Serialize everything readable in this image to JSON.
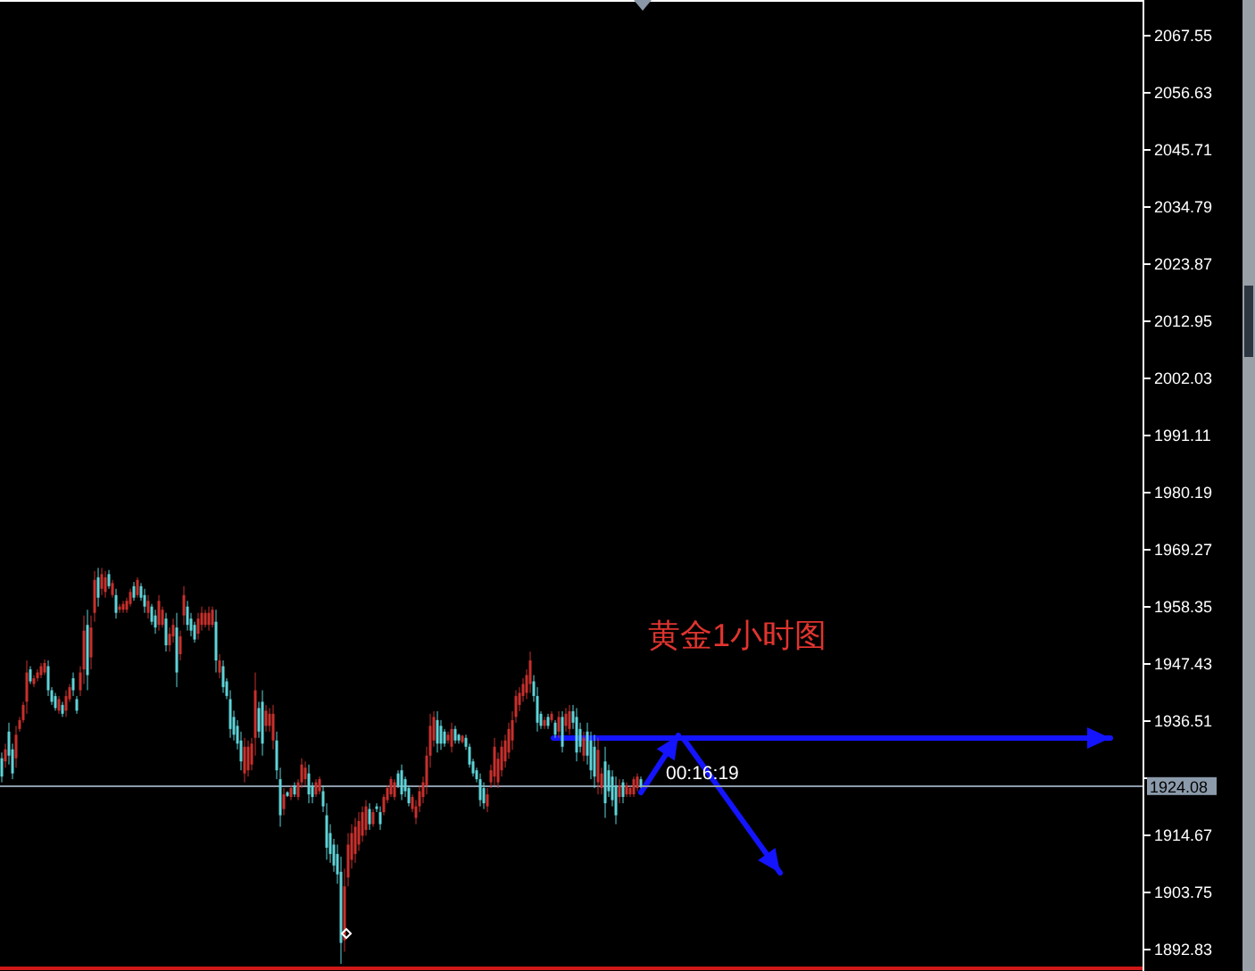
{
  "chart_data": {
    "type": "candlestick",
    "title": "黄金1小时图",
    "annotations": [
      "00:16:19"
    ],
    "categories": [
      null,
      null,
      null,
      null,
      null,
      null,
      null,
      null,
      null,
      null,
      null,
      null,
      null,
      null,
      null,
      null,
      null,
      null,
      null,
      null,
      null,
      null,
      null,
      null,
      null,
      null,
      null,
      null,
      null,
      null,
      null,
      null,
      null,
      null,
      null,
      null,
      null,
      null,
      null,
      null,
      null,
      null,
      null,
      null,
      null,
      null,
      null,
      null,
      null,
      null,
      null,
      null,
      null,
      null,
      null,
      null,
      null,
      null,
      null,
      null,
      null,
      null,
      null,
      null,
      null,
      null,
      null,
      null,
      null,
      null,
      null,
      null,
      null,
      null,
      null,
      null,
      null,
      null,
      null,
      null,
      null,
      null,
      null,
      null,
      null,
      null,
      null,
      null,
      null,
      null,
      null,
      null,
      null,
      null,
      null,
      null,
      null,
      null,
      null,
      null,
      null,
      null,
      null,
      null,
      null,
      null,
      null,
      null,
      null,
      null,
      null,
      null,
      null,
      null,
      null,
      null,
      null,
      null,
      null,
      null,
      null,
      null,
      null,
      null,
      null,
      null,
      null,
      null,
      null,
      null,
      null,
      null,
      null,
      null,
      null,
      null,
      null,
      null,
      null,
      null,
      null,
      null,
      null,
      null,
      null,
      null,
      null,
      null,
      null,
      null,
      null,
      null,
      null,
      null,
      null,
      null,
      null,
      null,
      null,
      null,
      null,
      null,
      null,
      null,
      null,
      null,
      null,
      null,
      null,
      null,
      null,
      null,
      null,
      null,
      null,
      null,
      null,
      null,
      null,
      null,
      null,
      null,
      null,
      null,
      null,
      null,
      null,
      null,
      null,
      null,
      null,
      null,
      null,
      null,
      null,
      null,
      null,
      null,
      null,
      null,
      null,
      null,
      null,
      null,
      null,
      null,
      null,
      null,
      null,
      null,
      null,
      null,
      null,
      null,
      null,
      null,
      null,
      null,
      null,
      null,
      null,
      null,
      null,
      null,
      null,
      null,
      null,
      null,
      null,
      null,
      null,
      null,
      null,
      null,
      null,
      null,
      null,
      null,
      null,
      null,
      null,
      null,
      null,
      null,
      null,
      null,
      null,
      null,
      null,
      null,
      null,
      null,
      null,
      null,
      null,
      null,
      null,
      null,
      null,
      null,
      null,
      null,
      null,
      null,
      null,
      null,
      null,
      null,
      null,
      null,
      null,
      null,
      null,
      null,
      null,
      null,
      null,
      null,
      null,
      null,
      null,
      null,
      null,
      null,
      null,
      null,
      null,
      null,
      null,
      null,
      null,
      null,
      null,
      null,
      null,
      null,
      null,
      null,
      null,
      null,
      null,
      null,
      null,
      null,
      null,
      null,
      null,
      null,
      null,
      null,
      null,
      null,
      null,
      null,
      null,
      null,
      null,
      null,
      null,
      null
    ],
    "ohlc": [
      [
        1929.4,
        1930.5,
        1924.8,
        1925.9
      ],
      [
        1928.8,
        1932.2,
        1927.6,
        1931.1
      ],
      [
        1934.5,
        1936.2,
        1928.2,
        1929.9
      ],
      [
        1931.1,
        1932.2,
        1925.4,
        1926.5
      ],
      [
        1929.4,
        1935.6,
        1927.6,
        1933.9
      ],
      [
        1935.0,
        1937.3,
        1934.5,
        1936.7
      ],
      [
        1936.7,
        1940.2,
        1936.2,
        1939.6
      ],
      [
        1940.2,
        1948.1,
        1937.9,
        1945.8
      ],
      [
        1946.4,
        1947.0,
        1943.6,
        1944.1
      ],
      [
        1943.6,
        1945.3,
        1943.0,
        1944.7
      ],
      [
        1944.7,
        1946.4,
        1944.1,
        1945.8
      ],
      [
        1945.3,
        1947.6,
        1944.7,
        1947.0
      ],
      [
        1945.8,
        1948.3,
        1945.3,
        1947.6
      ],
      [
        1947.0,
        1948.1,
        1941.3,
        1942.4
      ],
      [
        1942.4,
        1943.0,
        1939.6,
        1940.2
      ],
      [
        1941.3,
        1941.9,
        1938.5,
        1939.0
      ],
      [
        1938.5,
        1941.3,
        1937.9,
        1940.7
      ],
      [
        1939.6,
        1940.2,
        1937.3,
        1937.9
      ],
      [
        1938.5,
        1942.4,
        1937.3,
        1941.3
      ],
      [
        1940.7,
        1943.6,
        1940.2,
        1943.0
      ],
      [
        1944.7,
        1945.8,
        1941.3,
        1942.4
      ],
      [
        1940.7,
        1941.3,
        1937.9,
        1938.5
      ],
      [
        1942.4,
        1947.0,
        1941.3,
        1945.8
      ],
      [
        1946.4,
        1956.7,
        1943.6,
        1953.8
      ],
      [
        1954.9,
        1957.8,
        1942.4,
        1945.3
      ],
      [
        1948.7,
        1956.7,
        1946.4,
        1954.4
      ],
      [
        1957.2,
        1965.2,
        1955.5,
        1963.5
      ],
      [
        1964.0,
        1965.8,
        1958.4,
        1960.1
      ],
      [
        1961.8,
        1965.8,
        1960.6,
        1964.6
      ],
      [
        1961.2,
        1965.2,
        1960.1,
        1964.0
      ],
      [
        1964.6,
        1965.4,
        1961.8,
        1962.3
      ],
      [
        1960.6,
        1963.5,
        1960.1,
        1962.9
      ],
      [
        1960.6,
        1961.8,
        1956.1,
        1957.2
      ],
      [
        1957.8,
        1958.9,
        1957.2,
        1958.4
      ],
      [
        1957.8,
        1959.5,
        1957.2,
        1958.9
      ],
      [
        1957.8,
        1960.1,
        1957.2,
        1959.5
      ],
      [
        1958.9,
        1961.8,
        1958.4,
        1961.2
      ],
      [
        1962.3,
        1963.1,
        1959.5,
        1960.1
      ],
      [
        1960.6,
        1964.0,
        1960.1,
        1963.5
      ],
      [
        1962.3,
        1962.9,
        1959.5,
        1960.1
      ],
      [
        1960.6,
        1961.8,
        1957.2,
        1958.4
      ],
      [
        1957.2,
        1960.6,
        1956.1,
        1959.5
      ],
      [
        1958.4,
        1958.9,
        1954.9,
        1955.5
      ],
      [
        1956.7,
        1957.8,
        1953.2,
        1954.4
      ],
      [
        1954.9,
        1960.6,
        1953.8,
        1959.5
      ],
      [
        1954.9,
        1958.4,
        1954.4,
        1957.8
      ],
      [
        1956.1,
        1957.2,
        1949.8,
        1951.0
      ],
      [
        1951.0,
        1954.4,
        1949.8,
        1953.2
      ],
      [
        1952.7,
        1956.1,
        1951.5,
        1954.9
      ],
      [
        1954.4,
        1957.2,
        1943.0,
        1945.8
      ],
      [
        1949.3,
        1953.8,
        1948.1,
        1952.7
      ],
      [
        1956.7,
        1962.3,
        1954.9,
        1960.6
      ],
      [
        1958.4,
        1959.5,
        1953.8,
        1954.9
      ],
      [
        1956.1,
        1957.2,
        1952.7,
        1953.8
      ],
      [
        1954.9,
        1955.5,
        1951.5,
        1952.1
      ],
      [
        1953.2,
        1957.2,
        1952.1,
        1956.1
      ],
      [
        1954.9,
        1958.4,
        1953.8,
        1957.2
      ],
      [
        1954.9,
        1957.8,
        1954.4,
        1957.2
      ],
      [
        1954.9,
        1958.4,
        1953.8,
        1957.2
      ],
      [
        1954.9,
        1958.4,
        1954.4,
        1957.8
      ],
      [
        1955.5,
        1957.8,
        1945.8,
        1948.1
      ],
      [
        1945.8,
        1949.3,
        1944.7,
        1948.1
      ],
      [
        1947.0,
        1948.1,
        1941.9,
        1943.0
      ],
      [
        1944.1,
        1944.7,
        1940.7,
        1941.3
      ],
      [
        1940.7,
        1942.4,
        1933.3,
        1935.0
      ],
      [
        1937.3,
        1938.5,
        1932.8,
        1933.9
      ],
      [
        1935.6,
        1936.7,
        1931.1,
        1932.2
      ],
      [
        1932.8,
        1934.5,
        1927.1,
        1928.8
      ],
      [
        1926.5,
        1933.3,
        1924.8,
        1931.6
      ],
      [
        1927.1,
        1932.8,
        1925.9,
        1931.6
      ],
      [
        1928.2,
        1933.3,
        1927.1,
        1932.2
      ],
      [
        1933.3,
        1945.8,
        1929.9,
        1942.4
      ],
      [
        1939.0,
        1940.2,
        1933.3,
        1934.5
      ],
      [
        1940.2,
        1942.4,
        1929.9,
        1932.2
      ],
      [
        1935.6,
        1939.6,
        1934.5,
        1938.5
      ],
      [
        1935.6,
        1939.0,
        1934.5,
        1937.9
      ],
      [
        1932.8,
        1939.6,
        1931.1,
        1937.9
      ],
      [
        1932.8,
        1934.5,
        1925.4,
        1927.1
      ],
      [
        1925.4,
        1927.6,
        1916.3,
        1918.5
      ],
      [
        1919.7,
        1923.7,
        1918.5,
        1922.5
      ],
      [
        1922.9,
        1923.1,
        1922.0,
        1922.2
      ],
      [
        1922.0,
        1924.2,
        1921.4,
        1923.7
      ],
      [
        1924.2,
        1924.8,
        1922.0,
        1922.5
      ],
      [
        1922.0,
        1925.4,
        1921.4,
        1924.8
      ],
      [
        1924.8,
        1929.4,
        1923.7,
        1928.2
      ],
      [
        1925.4,
        1928.8,
        1924.2,
        1927.6
      ],
      [
        1926.5,
        1928.2,
        1920.8,
        1922.5
      ],
      [
        1924.2,
        1924.8,
        1920.8,
        1922.0
      ],
      [
        1922.5,
        1925.4,
        1922.0,
        1924.8
      ],
      [
        1923.1,
        1925.9,
        1922.5,
        1925.4
      ],
      [
        1923.1,
        1924.2,
        1919.1,
        1920.2
      ],
      [
        1918.5,
        1920.8,
        1910.0,
        1912.3
      ],
      [
        1915.1,
        1916.8,
        1909.4,
        1911.1
      ],
      [
        1912.9,
        1914.0,
        1907.7,
        1908.9
      ],
      [
        1911.1,
        1912.9,
        1905.4,
        1907.2
      ],
      [
        1907.7,
        1910.6,
        1890.1,
        1894.1
      ],
      [
        1894.6,
        1908.3,
        1892.4,
        1904.9
      ],
      [
        1906.6,
        1915.1,
        1904.9,
        1912.9
      ],
      [
        1910.0,
        1916.8,
        1908.3,
        1915.1
      ],
      [
        1911.1,
        1918.0,
        1909.4,
        1916.3
      ],
      [
        1912.9,
        1919.1,
        1911.7,
        1917.4
      ],
      [
        1914.6,
        1920.2,
        1913.4,
        1919.1
      ],
      [
        1915.7,
        1921.4,
        1914.6,
        1920.2
      ],
      [
        1919.7,
        1920.8,
        1915.7,
        1916.8
      ],
      [
        1916.8,
        1919.7,
        1916.3,
        1919.1
      ],
      [
        1920.2,
        1920.8,
        1919.1,
        1919.7
      ],
      [
        1919.1,
        1920.2,
        1915.7,
        1916.8
      ],
      [
        1919.1,
        1922.5,
        1918.5,
        1922.0
      ],
      [
        1921.4,
        1924.2,
        1920.8,
        1923.7
      ],
      [
        1922.5,
        1925.9,
        1922.0,
        1925.4
      ],
      [
        1922.0,
        1925.4,
        1921.4,
        1924.8
      ],
      [
        1926.5,
        1927.1,
        1923.7,
        1924.2
      ],
      [
        1927.1,
        1928.2,
        1921.4,
        1922.5
      ],
      [
        1925.4,
        1925.9,
        1922.0,
        1923.1
      ],
      [
        1923.7,
        1924.2,
        1920.2,
        1920.8
      ],
      [
        1919.7,
        1922.5,
        1919.1,
        1922.0
      ],
      [
        1918.0,
        1921.4,
        1916.8,
        1920.2
      ],
      [
        1920.2,
        1924.2,
        1919.1,
        1923.1
      ],
      [
        1922.0,
        1925.9,
        1920.8,
        1924.8
      ],
      [
        1924.2,
        1931.6,
        1922.5,
        1929.9
      ],
      [
        1929.9,
        1937.9,
        1927.6,
        1935.6
      ],
      [
        1932.8,
        1938.4,
        1931.6,
        1937.3
      ],
      [
        1936.7,
        1938.4,
        1930.5,
        1932.2
      ],
      [
        1935.6,
        1936.7,
        1931.0,
        1932.2
      ],
      [
        1934.5,
        1935.0,
        1931.6,
        1932.2
      ],
      [
        1932.8,
        1934.5,
        1932.2,
        1933.9
      ],
      [
        1931.6,
        1936.2,
        1930.5,
        1935.0
      ],
      [
        1935.0,
        1935.6,
        1932.2,
        1932.8
      ],
      [
        1933.9,
        1934.1,
        1932.2,
        1932.8
      ],
      [
        1932.5,
        1933.9,
        1932.2,
        1933.7
      ],
      [
        1933.3,
        1933.9,
        1931.0,
        1931.6
      ],
      [
        1931.6,
        1932.2,
        1927.6,
        1928.2
      ],
      [
        1928.8,
        1929.3,
        1925.9,
        1926.5
      ],
      [
        1927.1,
        1927.6,
        1924.8,
        1925.4
      ],
      [
        1925.4,
        1926.5,
        1920.2,
        1921.4
      ],
      [
        1923.7,
        1924.8,
        1919.7,
        1920.8
      ],
      [
        1920.2,
        1923.7,
        1919.1,
        1922.5
      ],
      [
        1924.8,
        1928.2,
        1923.7,
        1927.1
      ],
      [
        1925.9,
        1933.3,
        1924.2,
        1931.6
      ],
      [
        1924.8,
        1930.5,
        1923.7,
        1929.3
      ],
      [
        1927.1,
        1932.8,
        1925.9,
        1931.6
      ],
      [
        1928.8,
        1933.9,
        1927.6,
        1932.8
      ],
      [
        1930.5,
        1936.2,
        1929.3,
        1935.0
      ],
      [
        1932.8,
        1938.4,
        1931.0,
        1936.7
      ],
      [
        1937.3,
        1942.4,
        1936.2,
        1941.3
      ],
      [
        1939.6,
        1943.0,
        1938.4,
        1941.9
      ],
      [
        1941.3,
        1944.7,
        1940.2,
        1943.6
      ],
      [
        1941.9,
        1946.4,
        1940.7,
        1945.3
      ],
      [
        1943.6,
        1949.8,
        1941.9,
        1948.1
      ],
      [
        1944.1,
        1945.3,
        1940.2,
        1941.3
      ],
      [
        1941.3,
        1943.0,
        1934.5,
        1936.2
      ],
      [
        1937.9,
        1938.4,
        1935.0,
        1935.6
      ],
      [
        1935.6,
        1937.3,
        1935.0,
        1936.7
      ],
      [
        1937.3,
        1937.9,
        1935.0,
        1935.6
      ],
      [
        1936.7,
        1938.4,
        1936.2,
        1937.9
      ],
      [
        1936.2,
        1936.7,
        1933.3,
        1933.9
      ],
      [
        1934.5,
        1938.4,
        1933.3,
        1937.3
      ],
      [
        1937.3,
        1938.4,
        1930.5,
        1931.6
      ],
      [
        1935.6,
        1939.0,
        1934.5,
        1937.9
      ],
      [
        1935.0,
        1939.6,
        1933.9,
        1938.4
      ],
      [
        1938.4,
        1939.6,
        1935.0,
        1936.2
      ],
      [
        1937.3,
        1939.0,
        1928.8,
        1930.5
      ],
      [
        1935.0,
        1936.2,
        1930.5,
        1931.6
      ],
      [
        1929.9,
        1934.5,
        1928.8,
        1933.3
      ],
      [
        1934.5,
        1936.2,
        1928.2,
        1929.9
      ],
      [
        1932.8,
        1934.5,
        1925.4,
        1927.1
      ],
      [
        1931.6,
        1933.9,
        1923.7,
        1925.9
      ],
      [
        1924.8,
        1933.3,
        1922.5,
        1931.0
      ],
      [
        1923.7,
        1927.6,
        1922.5,
        1926.5
      ],
      [
        1928.8,
        1931.6,
        1918.0,
        1920.8
      ],
      [
        1927.1,
        1928.2,
        1922.0,
        1923.1
      ],
      [
        1925.9,
        1927.1,
        1920.2,
        1921.4
      ],
      [
        1924.2,
        1925.9,
        1916.8,
        1918.5
      ],
      [
        1922.0,
        1925.4,
        1920.8,
        1924.2
      ],
      [
        1924.8,
        1925.4,
        1920.8,
        1922.0
      ],
      [
        1922.5,
        1924.8,
        1922.0,
        1924.2
      ],
      [
        1922.5,
        1924.2,
        1922.0,
        1923.7
      ],
      [
        1922.5,
        1925.9,
        1922.0,
        1925.4
      ],
      [
        1923.7,
        1926.5,
        1923.1,
        1925.9
      ],
      [
        1925.4,
        1925.9,
        1923.7,
        1924.08
      ],
      null,
      null,
      null,
      null,
      null,
      null,
      null,
      null,
      null,
      null,
      null,
      null,
      null,
      null,
      null,
      null,
      null,
      null,
      null,
      null,
      null,
      null,
      null,
      null,
      null,
      null,
      null,
      null,
      null,
      null,
      null,
      null,
      null,
      null,
      null,
      null,
      null,
      null,
      null,
      null,
      null,
      null,
      null,
      null,
      null,
      null,
      null,
      null,
      null,
      null,
      null,
      null,
      null,
      null,
      null,
      null,
      null,
      null,
      null,
      null,
      null,
      null,
      null,
      null,
      null,
      null,
      null,
      null,
      null,
      null,
      null,
      null,
      null,
      null,
      null,
      null,
      null,
      null,
      null,
      null,
      null,
      null,
      null,
      null,
      null,
      null,
      null,
      null,
      null,
      null,
      null,
      null,
      null,
      null,
      null,
      null,
      null,
      null,
      null,
      null,
      null,
      null,
      null,
      null,
      null,
      null,
      null,
      null,
      null,
      null,
      null,
      null,
      null,
      null,
      null,
      null,
      null,
      null,
      null,
      null,
      null,
      null,
      null,
      null,
      null,
      null,
      null,
      null,
      null,
      null,
      null,
      null,
      null,
      null,
      null,
      null,
      null,
      null,
      null,
      null
    ],
    "colors": [
      "#5fd3d8",
      "#c8302c",
      "#5fd3d8",
      "#5fd3d8",
      "#c8302c",
      "#c8302c",
      "#c8302c",
      "#c8302c",
      "#5fd3d8",
      "#c8302c",
      "#c8302c",
      "#c8302c",
      "#c8302c",
      "#5fd3d8",
      "#5fd3d8",
      "#5fd3d8",
      "#c8302c",
      "#5fd3d8",
      "#c8302c",
      "#c8302c",
      "#5fd3d8",
      "#5fd3d8",
      "#c8302c",
      "#c8302c",
      "#5fd3d8",
      "#c8302c",
      "#c8302c",
      "#5fd3d8",
      "#c8302c",
      "#c8302c",
      "#5fd3d8",
      "#c8302c",
      "#5fd3d8",
      "#c8302c",
      "#c8302c",
      "#c8302c",
      "#c8302c",
      "#5fd3d8",
      "#c8302c",
      "#5fd3d8",
      "#5fd3d8",
      "#c8302c",
      "#5fd3d8",
      "#5fd3d8",
      "#c8302c",
      "#c8302c",
      "#5fd3d8",
      "#c8302c",
      "#c8302c",
      "#5fd3d8",
      "#c8302c",
      "#c8302c",
      "#5fd3d8",
      "#5fd3d8",
      "#5fd3d8",
      "#c8302c",
      "#c8302c",
      "#c8302c",
      "#c8302c",
      "#c8302c",
      "#5fd3d8",
      "#c8302c",
      "#5fd3d8",
      "#5fd3d8",
      "#5fd3d8",
      "#5fd3d8",
      "#5fd3d8",
      "#5fd3d8",
      "#c8302c",
      "#c8302c",
      "#c8302c",
      "#c8302c",
      "#5fd3d8",
      "#5fd3d8",
      "#c8302c",
      "#c8302c",
      "#c8302c",
      "#5fd3d8",
      "#5fd3d8",
      "#c8302c",
      "#5fd3d8",
      "#c8302c",
      "#5fd3d8",
      "#c8302c",
      "#c8302c",
      "#c8302c",
      "#5fd3d8",
      "#5fd3d8",
      "#c8302c",
      "#c8302c",
      "#5fd3d8",
      "#5fd3d8",
      "#5fd3d8",
      "#5fd3d8",
      "#5fd3d8",
      "#5fd3d8",
      "#c8302c",
      "#c8302c",
      "#c8302c",
      "#c8302c",
      "#c8302c",
      "#c8302c",
      "#c8302c",
      "#5fd3d8",
      "#c8302c",
      "#5fd3d8",
      "#5fd3d8",
      "#c8302c",
      "#c8302c",
      "#c8302c",
      "#c8302c",
      "#5fd3d8",
      "#5fd3d8",
      "#5fd3d8",
      "#5fd3d8",
      "#c8302c",
      "#c8302c",
      "#c8302c",
      "#c8302c",
      "#c8302c",
      "#c8302c",
      "#c8302c",
      "#5fd3d8",
      "#5fd3d8",
      "#5fd3d8",
      "#c8302c",
      "#c8302c",
      "#5fd3d8",
      "#5fd3d8",
      "#c8302c",
      "#5fd3d8",
      "#5fd3d8",
      "#5fd3d8",
      "#5fd3d8",
      "#5fd3d8",
      "#5fd3d8",
      "#c8302c",
      "#c8302c",
      "#c8302c",
      "#c8302c",
      "#c8302c",
      "#c8302c",
      "#c8302c",
      "#c8302c",
      "#c8302c",
      "#c8302c",
      "#c8302c",
      "#c8302c",
      "#c8302c",
      "#5fd3d8",
      "#5fd3d8",
      "#5fd3d8",
      "#c8302c",
      "#5fd3d8",
      "#c8302c",
      "#5fd3d8",
      "#c8302c",
      "#5fd3d8",
      "#c8302c",
      "#c8302c",
      "#5fd3d8",
      "#5fd3d8",
      "#5fd3d8",
      "#c8302c",
      "#5fd3d8",
      "#5fd3d8",
      "#5fd3d8",
      "#c8302c",
      "#c8302c",
      "#5fd3d8",
      "#5fd3d8",
      "#5fd3d8",
      "#5fd3d8",
      "#c8302c",
      "#5fd3d8",
      "#c8302c",
      "#c8302c",
      "#c8302c",
      "#c8302c",
      "#5fd3d8",
      null,
      null,
      null,
      null,
      null,
      null,
      null,
      null,
      null,
      null,
      null,
      null,
      null,
      null,
      null,
      null,
      null,
      null,
      null,
      null,
      null,
      null,
      null,
      null,
      null,
      null,
      null,
      null,
      null,
      null,
      null,
      null,
      null,
      null,
      null,
      null,
      null,
      null,
      null,
      null,
      null,
      null,
      null,
      null,
      null,
      null,
      null,
      null,
      null,
      null,
      null,
      null,
      null,
      null,
      null,
      null,
      null,
      null,
      null,
      null,
      null,
      null,
      null,
      null,
      null,
      null,
      null,
      null,
      null,
      null,
      null,
      null,
      null,
      null,
      null,
      null,
      null,
      null,
      null,
      null,
      null,
      null,
      null,
      null,
      null,
      null,
      null,
      null,
      null,
      null,
      null,
      null,
      null,
      null,
      null,
      null,
      null,
      null,
      null,
      null,
      null,
      null,
      null,
      null,
      null,
      null,
      null,
      null,
      null,
      null,
      null,
      null,
      null,
      null,
      null,
      null,
      null,
      null,
      null,
      null,
      null,
      null,
      null,
      null,
      null,
      null,
      null,
      null,
      null,
      null,
      null,
      null,
      null,
      null,
      null,
      null,
      null,
      null,
      null,
      null
    ],
    "ylim": [
      1888.73,
      2074.37
    ],
    "yticks": [
      1892.83,
      1903.75,
      1914.67,
      {
        "value": 1925.59,
        "label": null
      },
      1936.51,
      1947.43,
      1958.35,
      1969.27,
      1980.19,
      1991.11,
      2002.03,
      2012.95,
      2023.87,
      2034.79,
      2045.71,
      2056.63,
      2067.55
    ],
    "ref_lines": [
      {
        "axis": "y",
        "value": 1924.08,
        "label": "1924.08",
        "color": "#8c9bab"
      },
      {
        "axis": "y",
        "value": 1889.4,
        "color": "#d01818"
      }
    ]
  }
}
